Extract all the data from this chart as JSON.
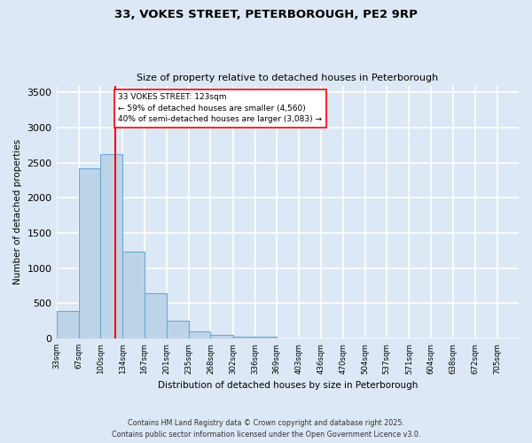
{
  "title_line1": "33, VOKES STREET, PETERBOROUGH, PE2 9RP",
  "title_line2": "Size of property relative to detached houses in Peterborough",
  "xlabel": "Distribution of detached houses by size in Peterborough",
  "ylabel": "Number of detached properties",
  "bar_edges": [
    33,
    67,
    100,
    134,
    167,
    201,
    235,
    268,
    302,
    336,
    369,
    403,
    436,
    470,
    504,
    537,
    571,
    604,
    638,
    672,
    705
  ],
  "bar_heights": [
    390,
    2420,
    2620,
    1230,
    640,
    255,
    100,
    50,
    30,
    30,
    5,
    5,
    5,
    0,
    0,
    0,
    0,
    0,
    0,
    0
  ],
  "bar_color": "#bdd4e8",
  "bar_edge_color": "#6aaad4",
  "vline_x": 123,
  "vline_color": "red",
  "annotation_text": "33 VOKES STREET: 123sqm\n← 59% of detached houses are smaller (4,560)\n40% of semi-detached houses are larger (3,083) →",
  "annotation_box_color": "white",
  "annotation_box_edge_color": "red",
  "ylim": [
    0,
    3600
  ],
  "yticks": [
    0,
    500,
    1000,
    1500,
    2000,
    2500,
    3000,
    3500
  ],
  "bg_color": "#dce8f5",
  "grid_color": "white",
  "footer_line1": "Contains HM Land Registry data © Crown copyright and database right 2025.",
  "footer_line2": "Contains public sector information licensed under the Open Government Licence v3.0."
}
